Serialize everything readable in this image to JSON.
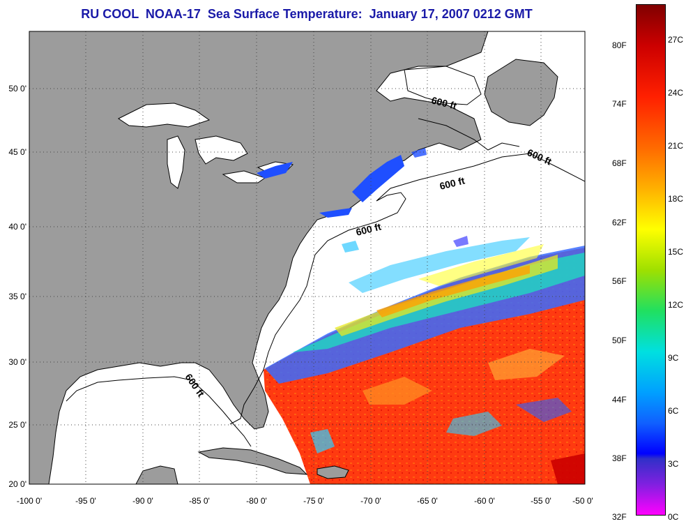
{
  "title": "RU COOL  NOAA-17  Sea Surface Temperature:  January 17, 2007 0212 GMT",
  "axes": {
    "x_ticks": [
      "-100 0'",
      "-95 0'",
      "-90 0'",
      "-85 0'",
      "-80 0'",
      "-75 0'",
      "-70 0'",
      "-65 0'",
      "-60 0'",
      "-55 0'",
      "-50 0'"
    ],
    "y_ticks": [
      "50 0'",
      "45 0'",
      "40 0'",
      "35 0'",
      "30 0'",
      "25 0'",
      "20 0'"
    ]
  },
  "depth_labels": [
    "600 ft",
    "600 ft",
    "600 ft",
    "600 ft",
    "600 ft"
  ],
  "colorbar": {
    "fahrenheit": [
      "80F",
      "74F",
      "68F",
      "62F",
      "56F",
      "50F",
      "44F",
      "38F",
      "32F"
    ],
    "celsius": [
      "27C",
      "24C",
      "21C",
      "18C",
      "15C",
      "12C",
      "9C",
      "6C",
      "3C",
      "0C"
    ]
  },
  "colors": {
    "land": "#9c9c9c",
    "title": "#1a1aa8",
    "warm": "#ff3a10",
    "cool": "#1f4fff"
  }
}
